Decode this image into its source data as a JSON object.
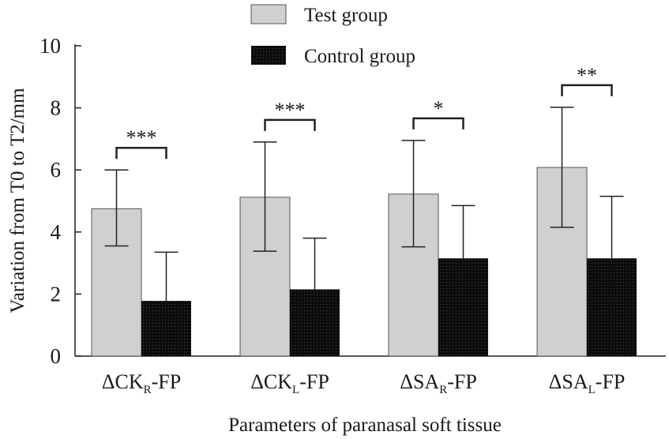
{
  "chart_data": {
    "type": "bar",
    "categories": [
      {
        "prefix": "ΔCK",
        "sub": "R",
        "suffix": "-FP"
      },
      {
        "prefix": "ΔCK",
        "sub": "L",
        "suffix": "-FP"
      },
      {
        "prefix": "ΔSA",
        "sub": "R",
        "suffix": "-FP"
      },
      {
        "prefix": "ΔSA",
        "sub": "L",
        "suffix": "-FP"
      }
    ],
    "series": [
      {
        "name": "Test group",
        "color": "#d0d0d0",
        "values": [
          4.75,
          5.12,
          5.22,
          6.08
        ],
        "err_low": [
          3.55,
          3.38,
          3.52,
          4.15
        ],
        "err_high": [
          6.0,
          6.9,
          6.95,
          8.02
        ]
      },
      {
        "name": "Control group",
        "color": "#111111",
        "values": [
          1.78,
          2.15,
          3.15,
          3.15
        ],
        "err_low": [
          1.78,
          2.15,
          3.15,
          3.15
        ],
        "err_high": [
          3.35,
          3.8,
          4.85,
          5.15
        ]
      }
    ],
    "significance": [
      "***",
      "***",
      "*",
      "**"
    ],
    "xlabel": "Parameters of paranasal soft tissue",
    "ylabel": "Variation from T0 to T2/mm",
    "ylim": [
      0,
      10
    ],
    "yticks": [
      "0",
      "2",
      "4",
      "6",
      "8",
      "10"
    ],
    "legend_position": "top-center"
  }
}
